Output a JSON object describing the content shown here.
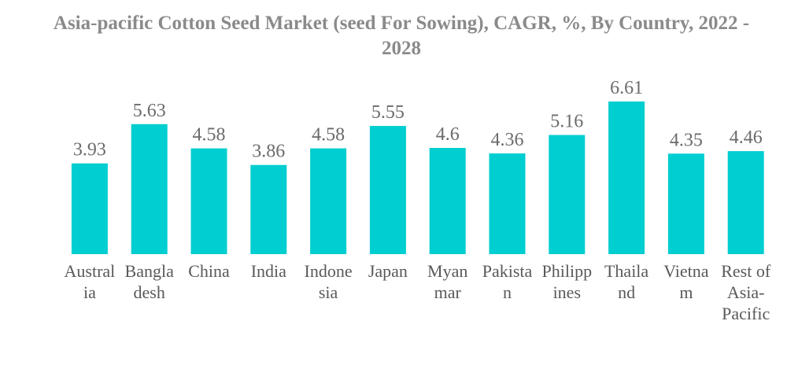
{
  "chart_data": {
    "type": "bar",
    "title": "Asia-pacific Cotton Seed Market (seed For Sowing), CAGR, %, By Country, 2022 - 2028",
    "xlabel": "",
    "ylabel": "",
    "categories": [
      [
        "Austral",
        "ia"
      ],
      [
        "Bangla",
        "desh"
      ],
      [
        "China"
      ],
      [
        "India"
      ],
      [
        "Indone",
        "sia"
      ],
      [
        "Japan"
      ],
      [
        "Myan",
        "mar"
      ],
      [
        "Pakista",
        "n"
      ],
      [
        "Philipp",
        "ines"
      ],
      [
        "Thaila",
        "nd"
      ],
      [
        "Vietna",
        "m"
      ],
      [
        "Rest of",
        "Asia-",
        "Pacific"
      ]
    ],
    "values": [
      3.93,
      5.63,
      4.58,
      3.86,
      4.58,
      5.55,
      4.6,
      4.36,
      5.16,
      6.61,
      4.35,
      4.46
    ],
    "value_labels": [
      "3.93",
      "5.63",
      "4.58",
      "3.86",
      "4.58",
      "5.55",
      "4.6",
      "4.36",
      "5.16",
      "6.61",
      "4.35",
      "4.46"
    ],
    "ylim": [
      0,
      6.61
    ],
    "grid": false,
    "legend": "none",
    "bar_color": "#00ced1"
  }
}
